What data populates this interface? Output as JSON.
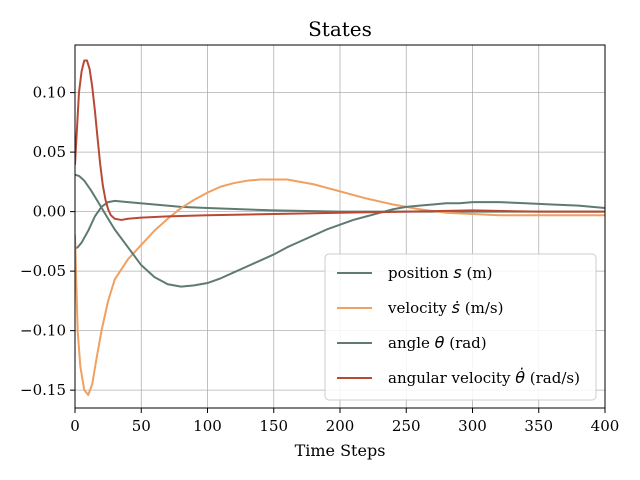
{
  "chart_data": {
    "type": "line",
    "title": "States",
    "xlabel": "Time Steps",
    "ylabel": "",
    "xlim": [
      0,
      400
    ],
    "ylim": [
      -0.165,
      0.14
    ],
    "grid": true,
    "legend_position": "lower-right",
    "x_ticks": [
      0,
      50,
      100,
      150,
      200,
      250,
      300,
      350,
      400
    ],
    "y_ticks": [
      -0.15,
      -0.1,
      -0.05,
      0.0,
      0.05,
      0.1
    ],
    "x_tick_labels": [
      "0",
      "50",
      "100",
      "150",
      "200",
      "250",
      "300",
      "350",
      "400"
    ],
    "y_tick_labels": [
      "−0.15",
      "−0.10",
      "−0.05",
      "0.00",
      "0.05",
      "0.10"
    ],
    "series": [
      {
        "name": "position s (m)",
        "name_plain": "position ",
        "name_symbol": "s",
        "name_unit": " (m)",
        "color": "#5f7a71",
        "points": [
          [
            0,
            -0.031
          ],
          [
            2,
            -0.03
          ],
          [
            5,
            -0.026
          ],
          [
            10,
            -0.016
          ],
          [
            15,
            -0.004
          ],
          [
            20,
            0.004
          ],
          [
            25,
            0.008
          ],
          [
            30,
            0.009
          ],
          [
            40,
            0.008
          ],
          [
            60,
            0.006
          ],
          [
            80,
            0.004
          ],
          [
            100,
            0.003
          ],
          [
            150,
            0.001
          ],
          [
            200,
            0.0
          ],
          [
            250,
            0.0
          ],
          [
            300,
            0.0
          ],
          [
            350,
            0.0
          ],
          [
            400,
            0.0
          ]
        ]
      },
      {
        "name": "velocity ṡ (m/s)",
        "name_plain": "velocity ",
        "name_symbol": "ṡ",
        "name_unit": " (m/s)",
        "color": "#f0a060",
        "points": [
          [
            0,
            -0.02
          ],
          [
            1,
            -0.06
          ],
          [
            2,
            -0.1
          ],
          [
            4,
            -0.13
          ],
          [
            7,
            -0.15
          ],
          [
            10,
            -0.154
          ],
          [
            13,
            -0.145
          ],
          [
            16,
            -0.125
          ],
          [
            20,
            -0.1
          ],
          [
            25,
            -0.075
          ],
          [
            30,
            -0.057
          ],
          [
            40,
            -0.04
          ],
          [
            50,
            -0.028
          ],
          [
            60,
            -0.016
          ],
          [
            70,
            -0.006
          ],
          [
            80,
            0.003
          ],
          [
            90,
            0.01
          ],
          [
            100,
            0.016
          ],
          [
            110,
            0.021
          ],
          [
            120,
            0.024
          ],
          [
            130,
            0.026
          ],
          [
            140,
            0.027
          ],
          [
            150,
            0.027
          ],
          [
            160,
            0.027
          ],
          [
            170,
            0.025
          ],
          [
            180,
            0.023
          ],
          [
            190,
            0.02
          ],
          [
            200,
            0.017
          ],
          [
            220,
            0.011
          ],
          [
            240,
            0.006
          ],
          [
            260,
            0.002
          ],
          [
            280,
            -0.001
          ],
          [
            300,
            -0.002
          ],
          [
            320,
            -0.003
          ],
          [
            350,
            -0.003
          ],
          [
            400,
            -0.003
          ]
        ]
      },
      {
        "name": "angle θ (rad)",
        "name_plain": "angle ",
        "name_symbol": "θ",
        "name_unit": " (rad)",
        "color": "#5f7a71",
        "points": [
          [
            0,
            0.031
          ],
          [
            3,
            0.03
          ],
          [
            7,
            0.026
          ],
          [
            12,
            0.018
          ],
          [
            18,
            0.007
          ],
          [
            25,
            -0.006
          ],
          [
            30,
            -0.015
          ],
          [
            40,
            -0.03
          ],
          [
            50,
            -0.045
          ],
          [
            60,
            -0.055
          ],
          [
            70,
            -0.061
          ],
          [
            80,
            -0.063
          ],
          [
            90,
            -0.062
          ],
          [
            100,
            -0.06
          ],
          [
            110,
            -0.056
          ],
          [
            120,
            -0.051
          ],
          [
            130,
            -0.046
          ],
          [
            140,
            -0.041
          ],
          [
            150,
            -0.036
          ],
          [
            160,
            -0.03
          ],
          [
            170,
            -0.025
          ],
          [
            180,
            -0.02
          ],
          [
            190,
            -0.015
          ],
          [
            200,
            -0.011
          ],
          [
            210,
            -0.007
          ],
          [
            220,
            -0.004
          ],
          [
            230,
            -0.001
          ],
          [
            240,
            0.002
          ],
          [
            250,
            0.004
          ],
          [
            260,
            0.005
          ],
          [
            270,
            0.006
          ],
          [
            280,
            0.007
          ],
          [
            290,
            0.007
          ],
          [
            300,
            0.008
          ],
          [
            320,
            0.008
          ],
          [
            340,
            0.007
          ],
          [
            360,
            0.006
          ],
          [
            380,
            0.005
          ],
          [
            400,
            0.003
          ]
        ]
      },
      {
        "name": "angular velocity θ̇ (rad/s)",
        "name_plain": "angular velocity ",
        "name_symbol": "θ̇",
        "name_unit": " (rad/s)",
        "color": "#b84a35",
        "points": [
          [
            0,
            0.04
          ],
          [
            1,
            0.06
          ],
          [
            2,
            0.08
          ],
          [
            3,
            0.1
          ],
          [
            5,
            0.118
          ],
          [
            7,
            0.127
          ],
          [
            9,
            0.127
          ],
          [
            11,
            0.12
          ],
          [
            13,
            0.105
          ],
          [
            15,
            0.085
          ],
          [
            17,
            0.062
          ],
          [
            19,
            0.04
          ],
          [
            21,
            0.022
          ],
          [
            23,
            0.01
          ],
          [
            25,
            0.002
          ],
          [
            27,
            -0.003
          ],
          [
            30,
            -0.006
          ],
          [
            35,
            -0.007
          ],
          [
            40,
            -0.006
          ],
          [
            50,
            -0.005
          ],
          [
            70,
            -0.004
          ],
          [
            100,
            -0.003
          ],
          [
            150,
            -0.002
          ],
          [
            200,
            -0.001
          ],
          [
            250,
            0.0
          ],
          [
            300,
            0.001
          ],
          [
            350,
            0.0
          ],
          [
            400,
            0.0
          ]
        ]
      }
    ]
  }
}
